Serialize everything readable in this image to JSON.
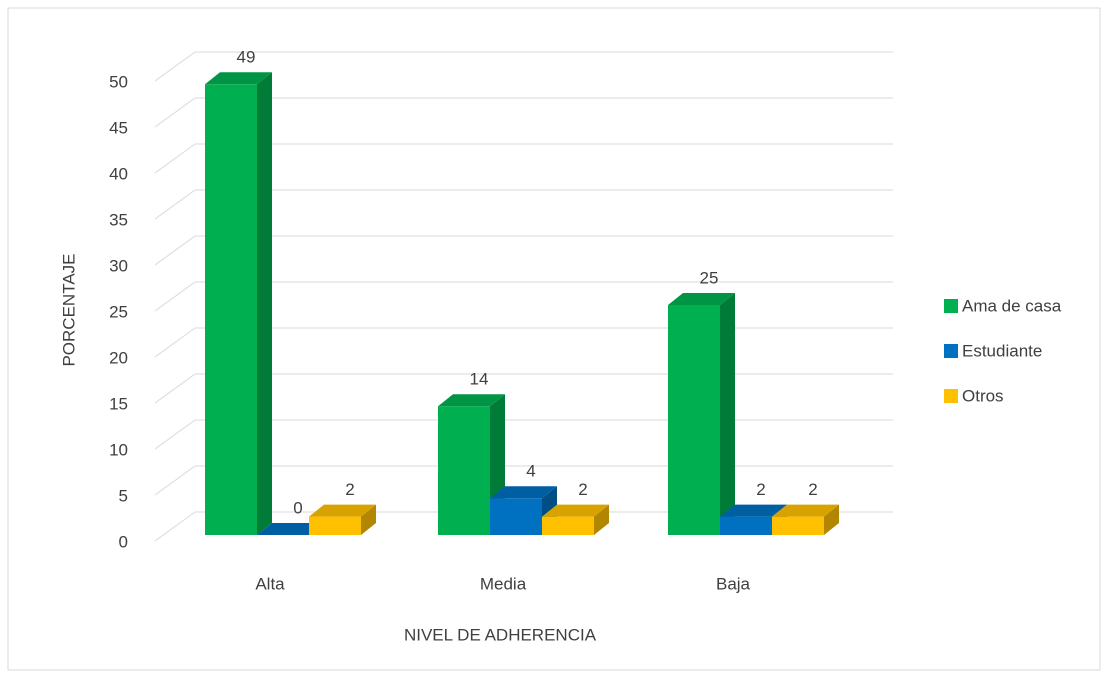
{
  "chart_data": {
    "type": "bar3d",
    "x_label": "NIVEL DE ADHERENCIA",
    "y_label": "PORCENTAJE",
    "categories": [
      "Alta",
      "Media",
      "Baja"
    ],
    "series": [
      {
        "name": "Ama de casa",
        "color": "#00b050",
        "values": [
          49,
          14,
          25
        ]
      },
      {
        "name": "Estudiante",
        "color": "#0070c0",
        "values": [
          0,
          4,
          2
        ]
      },
      {
        "name": "Otros",
        "color": "#ffc000",
        "values": [
          2,
          2,
          2
        ]
      }
    ],
    "ylim": [
      0,
      50
    ],
    "yticks": [
      0,
      5,
      10,
      15,
      20,
      25,
      30,
      35,
      40,
      45,
      50
    ],
    "grid": true,
    "legend": "right"
  }
}
